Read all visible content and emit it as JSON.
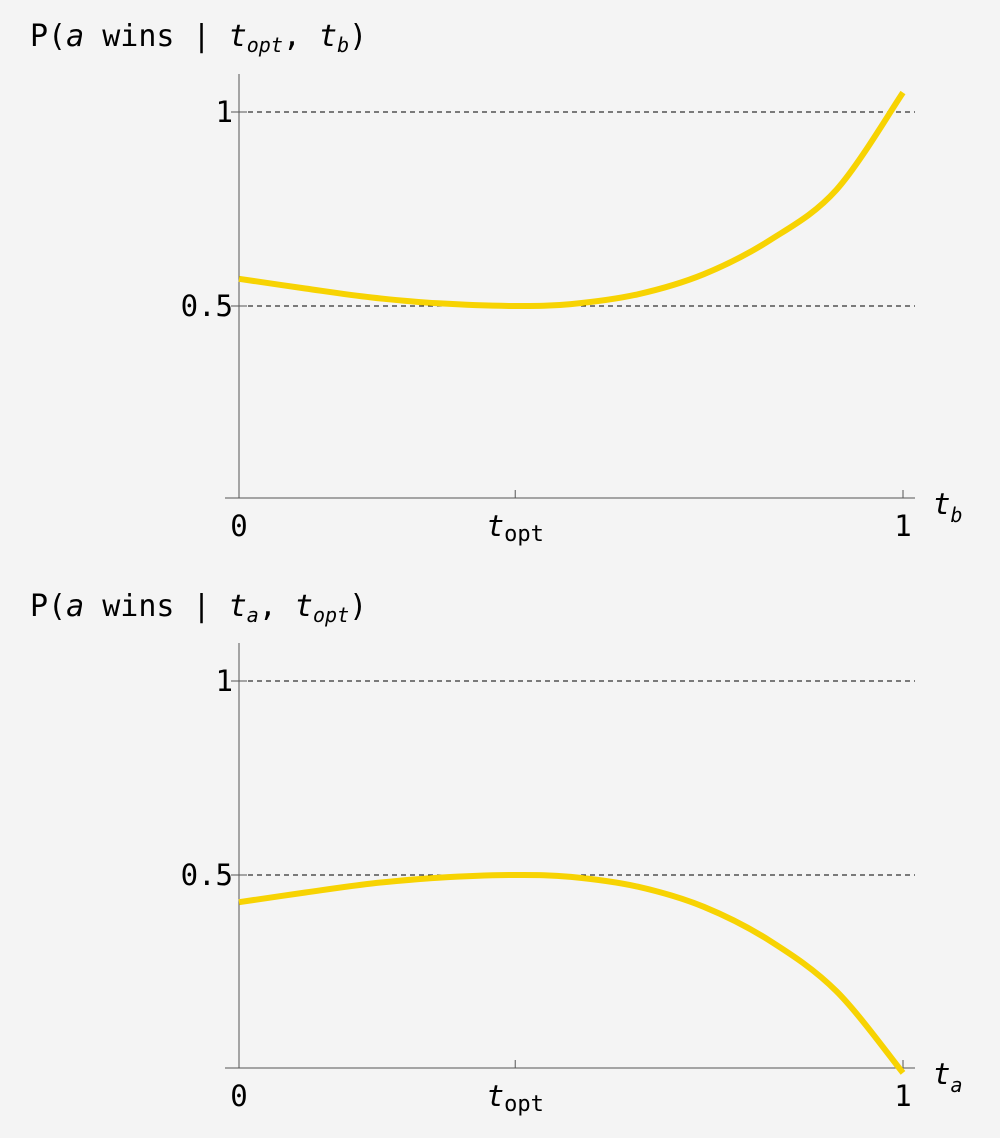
{
  "chart_data": [
    {
      "type": "line",
      "title": {
        "prefix": "P(",
        "var_a": "a",
        "middle": " wins | ",
        "arg1_base": "t",
        "arg1_sub": "opt",
        "comma": ",",
        "arg2_base": "t",
        "arg2_sub": "b",
        "suffix": ")"
      },
      "xlabel": {
        "base": "t",
        "sub": "b"
      },
      "x_ticks": [
        {
          "value": 0,
          "label": "0"
        },
        {
          "value": 0.416,
          "label_base": "t",
          "label_sub": "opt"
        },
        {
          "value": 1,
          "label": "1"
        }
      ],
      "y_ticks": [
        {
          "value": 0.5,
          "label": "0.5"
        },
        {
          "value": 1,
          "label": "1"
        }
      ],
      "xlim": [
        0,
        1
      ],
      "ylim": [
        -0.02,
        1.1
      ],
      "gridlines_y": [
        0.5,
        1
      ],
      "series": [
        {
          "color": "#f7d302",
          "x": [
            0,
            0.1,
            0.2,
            0.3,
            0.416,
            0.5,
            0.6,
            0.7,
            0.8,
            0.9,
            1.0
          ],
          "y": [
            0.57,
            0.545,
            0.522,
            0.507,
            0.5,
            0.505,
            0.53,
            0.582,
            0.67,
            0.8,
            1.05
          ]
        }
      ]
    },
    {
      "type": "line",
      "title": {
        "prefix": "P(",
        "var_a": "a",
        "middle": " wins | ",
        "arg1_base": "t",
        "arg1_sub": "a",
        "comma": ",",
        "arg2_base": "t",
        "arg2_sub": "opt",
        "suffix": ")"
      },
      "xlabel": {
        "base": "t",
        "sub": "a"
      },
      "x_ticks": [
        {
          "value": 0,
          "label": "0"
        },
        {
          "value": 0.416,
          "label_base": "t",
          "label_sub": "opt"
        },
        {
          "value": 1,
          "label": "1"
        }
      ],
      "y_ticks": [
        {
          "value": 0.5,
          "label": "0.5"
        },
        {
          "value": 1,
          "label": "1"
        }
      ],
      "xlim": [
        0,
        1
      ],
      "ylim": [
        -0.02,
        1.1
      ],
      "gridlines_y": [
        0.5,
        1
      ],
      "series": [
        {
          "color": "#f7d302",
          "x": [
            0,
            0.1,
            0.2,
            0.3,
            0.416,
            0.5,
            0.6,
            0.7,
            0.8,
            0.9,
            1.0
          ],
          "y": [
            0.43,
            0.455,
            0.478,
            0.493,
            0.5,
            0.495,
            0.47,
            0.418,
            0.33,
            0.2,
            -0.01
          ]
        }
      ]
    }
  ]
}
